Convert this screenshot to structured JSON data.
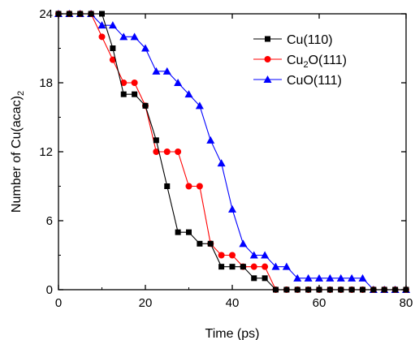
{
  "chart_data": {
    "type": "line",
    "title": "",
    "xlabel": "Time (ps)",
    "ylabel_parts": {
      "base": "Number of Cu(acac)",
      "sub": "2"
    },
    "xlim": [
      0,
      80
    ],
    "ylim": [
      0,
      24
    ],
    "x_ticks": [
      0,
      20,
      40,
      60,
      80
    ],
    "y_ticks": [
      0,
      6,
      12,
      18,
      24
    ],
    "grid": false,
    "legend_position": "top-right",
    "series": [
      {
        "name": "Cu(110)",
        "label_parts": [
          {
            "t": "Cu(110)"
          }
        ],
        "color": "#000000",
        "marker": "square",
        "x": [
          0,
          2.5,
          5,
          7.5,
          10,
          12.5,
          15,
          17.5,
          20,
          22.5,
          25,
          27.5,
          30,
          32.5,
          35,
          37.5,
          40,
          42.5,
          45,
          47.5,
          50,
          52.5,
          55,
          57.5,
          60,
          62.5,
          65,
          67.5,
          70,
          72.5,
          75,
          77.5,
          80
        ],
        "y": [
          24,
          24,
          24,
          24,
          24,
          21,
          17,
          17,
          16,
          13,
          9,
          5,
          5,
          4,
          4,
          2,
          2,
          2,
          1,
          1,
          0,
          0,
          0,
          0,
          0,
          0,
          0,
          0,
          0,
          0,
          0,
          0,
          0
        ]
      },
      {
        "name": "Cu2O(111)",
        "label_parts": [
          {
            "t": "Cu"
          },
          {
            "t": "2",
            "sub": true
          },
          {
            "t": "O(111)"
          }
        ],
        "color": "#ff0000",
        "marker": "circle",
        "x": [
          0,
          2.5,
          5,
          7.5,
          10,
          12.5,
          15,
          17.5,
          20,
          22.5,
          25,
          27.5,
          30,
          32.5,
          35,
          37.5,
          40,
          42.5,
          45,
          47.5,
          50,
          52.5,
          55,
          57.5,
          60,
          62.5,
          65,
          67.5,
          70,
          72.5,
          75,
          77.5,
          80
        ],
        "y": [
          24,
          24,
          24,
          24,
          22,
          20,
          18,
          18,
          16,
          12,
          12,
          12,
          9,
          9,
          4,
          3,
          3,
          2,
          2,
          2,
          0,
          0,
          0,
          0,
          0,
          0,
          0,
          0,
          0,
          0,
          0,
          0,
          0
        ]
      },
      {
        "name": "CuO(111)",
        "label_parts": [
          {
            "t": "CuO(111)"
          }
        ],
        "color": "#0000ff",
        "marker": "triangle",
        "x": [
          0,
          2.5,
          5,
          7.5,
          10,
          12.5,
          15,
          17.5,
          20,
          22.5,
          25,
          27.5,
          30,
          32.5,
          35,
          37.5,
          40,
          42.5,
          45,
          47.5,
          50,
          52.5,
          55,
          57.5,
          60,
          62.5,
          65,
          67.5,
          70,
          72.5,
          75,
          77.5,
          80
        ],
        "y": [
          24,
          24,
          24,
          24,
          23,
          23,
          22,
          22,
          21,
          19,
          19,
          18,
          17,
          16,
          13,
          11,
          7,
          4,
          3,
          3,
          2,
          2,
          1,
          1,
          1,
          1,
          1,
          1,
          1,
          0,
          0,
          0,
          0
        ]
      }
    ]
  }
}
